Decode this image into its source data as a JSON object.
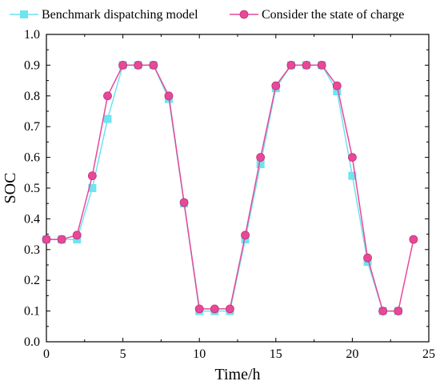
{
  "chart_data": {
    "type": "line",
    "xlabel": "Time/h",
    "ylabel": "SOC",
    "xlim": [
      0,
      25
    ],
    "ylim": [
      0.0,
      1.0
    ],
    "x_ticks": [
      "0",
      "5",
      "10",
      "15",
      "20",
      "25"
    ],
    "y_ticks": [
      "0.0",
      "0.1",
      "0.2",
      "0.3",
      "0.4",
      "0.5",
      "0.6",
      "0.7",
      "0.8",
      "0.9",
      "1.0"
    ],
    "grid": false,
    "legend_position": "top",
    "series": [
      {
        "name": "Benchmark dispatching model",
        "color": "#6FE3F0",
        "marker": "square",
        "x": [
          0,
          1,
          2,
          3,
          4,
          5,
          6,
          7,
          8,
          9,
          10,
          11,
          12,
          13,
          14,
          15,
          16,
          17,
          18,
          19,
          20,
          21,
          22,
          23
        ],
        "y": [
          0.333,
          0.333,
          0.333,
          0.5,
          0.725,
          0.9,
          0.9,
          0.9,
          0.79,
          0.45,
          0.1,
          0.1,
          0.1,
          0.333,
          0.578,
          0.825,
          0.9,
          0.9,
          0.9,
          0.815,
          0.54,
          0.26,
          0.1,
          0.1
        ]
      },
      {
        "name": "Consider the state of charge",
        "color": "#E8489A",
        "marker": "circle",
        "x": [
          0,
          1,
          2,
          3,
          4,
          5,
          6,
          7,
          8,
          9,
          10,
          11,
          12,
          13,
          14,
          15,
          16,
          17,
          18,
          19,
          20,
          21,
          22,
          23,
          24
        ],
        "y": [
          0.333,
          0.333,
          0.347,
          0.54,
          0.8,
          0.9,
          0.9,
          0.9,
          0.8,
          0.453,
          0.107,
          0.107,
          0.107,
          0.347,
          0.6,
          0.833,
          0.9,
          0.9,
          0.9,
          0.833,
          0.6,
          0.273,
          0.1,
          0.1,
          0.333
        ]
      }
    ]
  }
}
